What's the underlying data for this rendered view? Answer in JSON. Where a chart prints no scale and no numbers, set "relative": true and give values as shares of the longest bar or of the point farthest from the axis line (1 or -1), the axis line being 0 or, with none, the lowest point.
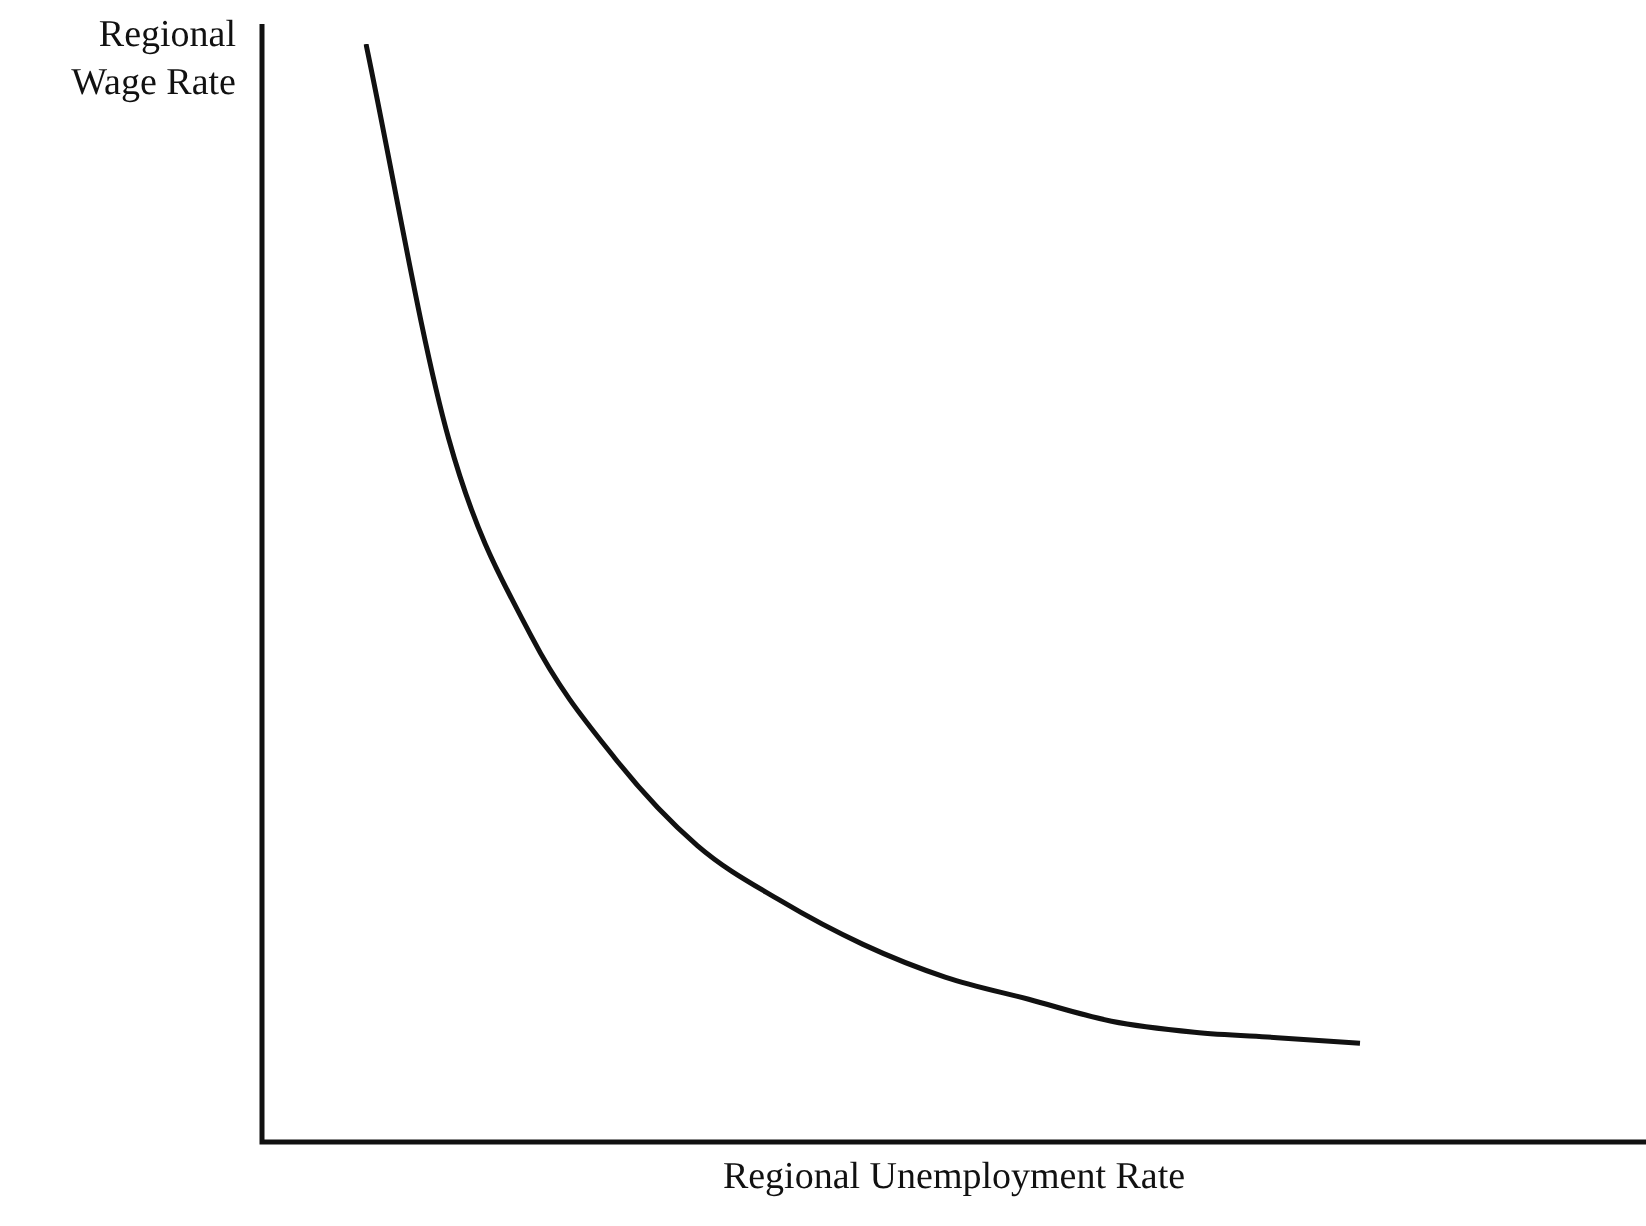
{
  "chart_data": {
    "type": "line",
    "relative": true,
    "xlabel": "Regional Unemployment Rate",
    "ylabel": "Regional Wage Rate",
    "color": "#111111",
    "categories": [
      null,
      null,
      null,
      null,
      null,
      null,
      null,
      null,
      null,
      null,
      null,
      null,
      null
    ],
    "values": [
      1,
      0.64,
      0.46,
      0.35,
      0.27,
      0.22,
      0.18,
      0.15,
      0.13,
      0.11,
      0.1,
      0.095,
      0.09
    ]
  }
}
